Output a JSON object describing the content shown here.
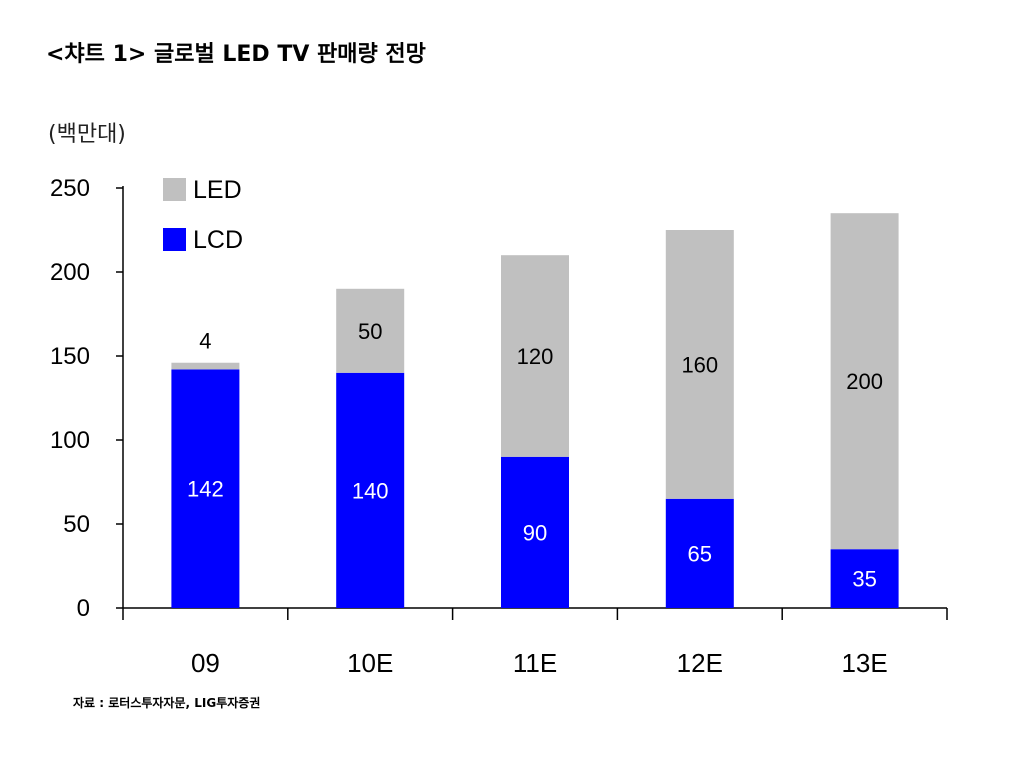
{
  "title": "<챠트 1> 글로벌 LED TV 판매량 전망",
  "source": "자료 : 로터스투자자문, LIG투자증권",
  "chart_data": {
    "type": "bar",
    "stacked": true,
    "ylabel": "(백만대)",
    "ylim": [
      0,
      250
    ],
    "yticks": [
      0,
      50,
      100,
      150,
      200,
      250
    ],
    "categories": [
      "09",
      "10E",
      "11E",
      "12E",
      "13E"
    ],
    "legend_position": "top-left",
    "series": [
      {
        "name": "LCD",
        "color": "#0000ff",
        "label_color": "#ffffff",
        "values": [
          142,
          140,
          90,
          65,
          35
        ]
      },
      {
        "name": "LED",
        "color": "#c0c0c0",
        "label_color": "#000000",
        "values": [
          4,
          50,
          120,
          160,
          200
        ]
      }
    ]
  }
}
